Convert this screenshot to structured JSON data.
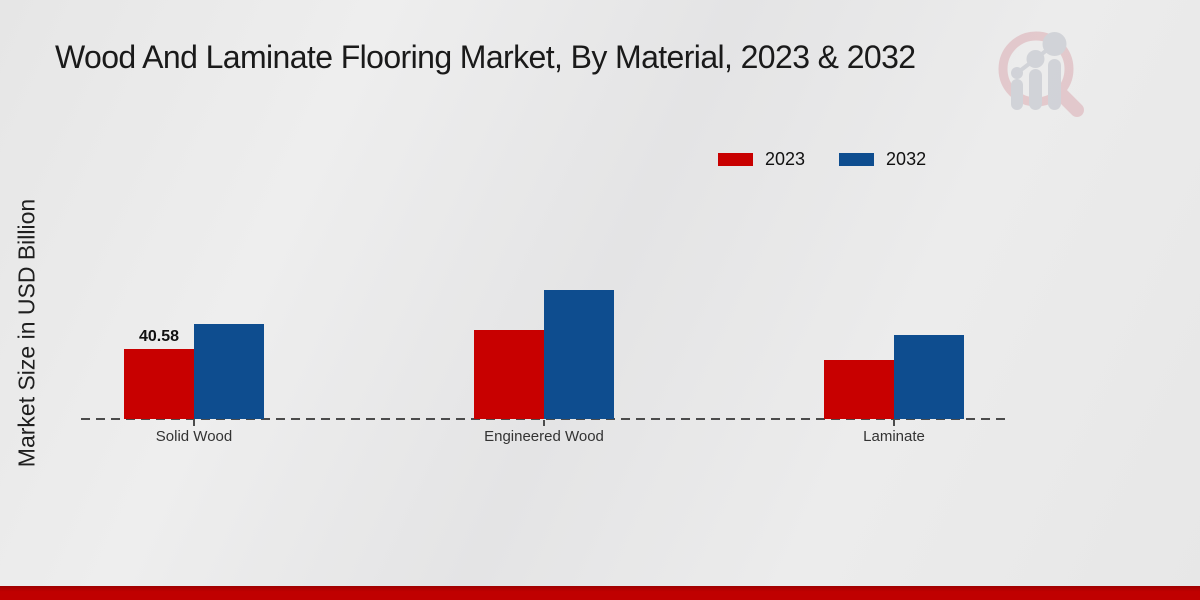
{
  "title": "Wood And Laminate Flooring Market, By Material, 2023 & 2032",
  "ylabel": "Market Size in USD Billion",
  "legend": [
    {
      "label": "2023",
      "color": "#c80000"
    },
    {
      "label": "2032",
      "color": "#0e4d8f"
    }
  ],
  "colors": {
    "series_2023": "#c80000",
    "series_2032": "#0e4d8f",
    "footer_strip": "#c00000",
    "axis": "#4b4b4b",
    "background": "#e9e9e9"
  },
  "chart_data": {
    "type": "bar",
    "categories": [
      "Solid Wood",
      "Engineered Wood",
      "Laminate"
    ],
    "series": [
      {
        "name": "2023",
        "color": "#c80000",
        "values": [
          40.58,
          51.6,
          34.5
        ]
      },
      {
        "name": "2032",
        "color": "#0e4d8f",
        "values": [
          55.1,
          75.1,
          48.7
        ]
      }
    ],
    "data_labels": [
      {
        "series": "2023",
        "category": "Solid Wood",
        "text": "40.58"
      }
    ],
    "title": "Wood And Laminate Flooring Market, By Material, 2023 & 2032",
    "xlabel": "",
    "ylabel": "Market Size in USD Billion",
    "grid": false,
    "legend_position": "top-right",
    "baseline_style": "dashed",
    "y_axis_ticks_visible": false
  }
}
